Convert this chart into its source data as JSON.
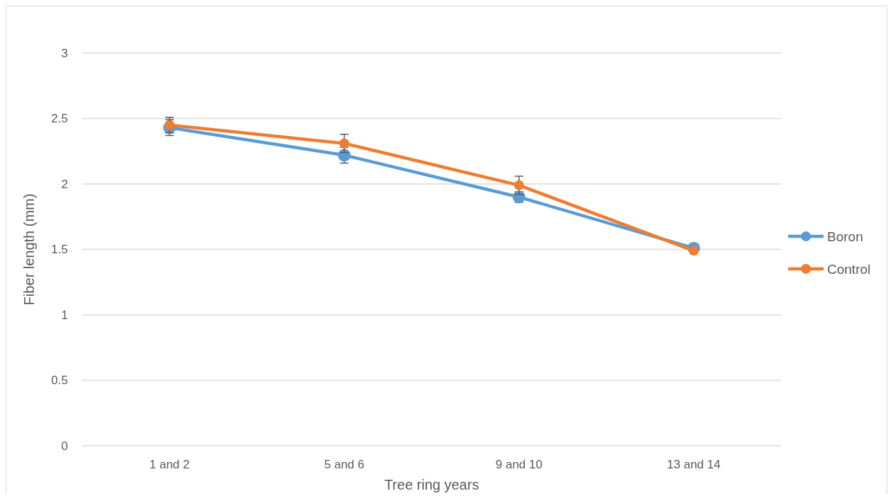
{
  "chart_data": {
    "type": "line",
    "xlabel": "Tree ring years",
    "ylabel": "Fiber length (mm)",
    "categories": [
      "1 and 2",
      "5 and 6",
      "9 and 10",
      "13 and 14"
    ],
    "series": [
      {
        "name": "Boron",
        "color": "#5b9bd5",
        "values": [
          2.43,
          2.22,
          1.9,
          1.51
        ],
        "errors": [
          0.06,
          0.06,
          0.04,
          null
        ]
      },
      {
        "name": "Control",
        "color": "#ed7d31",
        "values": [
          2.45,
          2.31,
          1.99,
          1.49
        ],
        "errors": [
          0.06,
          0.07,
          0.07,
          null
        ]
      }
    ],
    "ylim": [
      0,
      3
    ],
    "yticks": [
      0,
      0.5,
      1,
      1.5,
      2,
      2.5,
      3
    ],
    "grid": "y",
    "legend": "right",
    "marker": "circle",
    "line_style": "solid"
  }
}
